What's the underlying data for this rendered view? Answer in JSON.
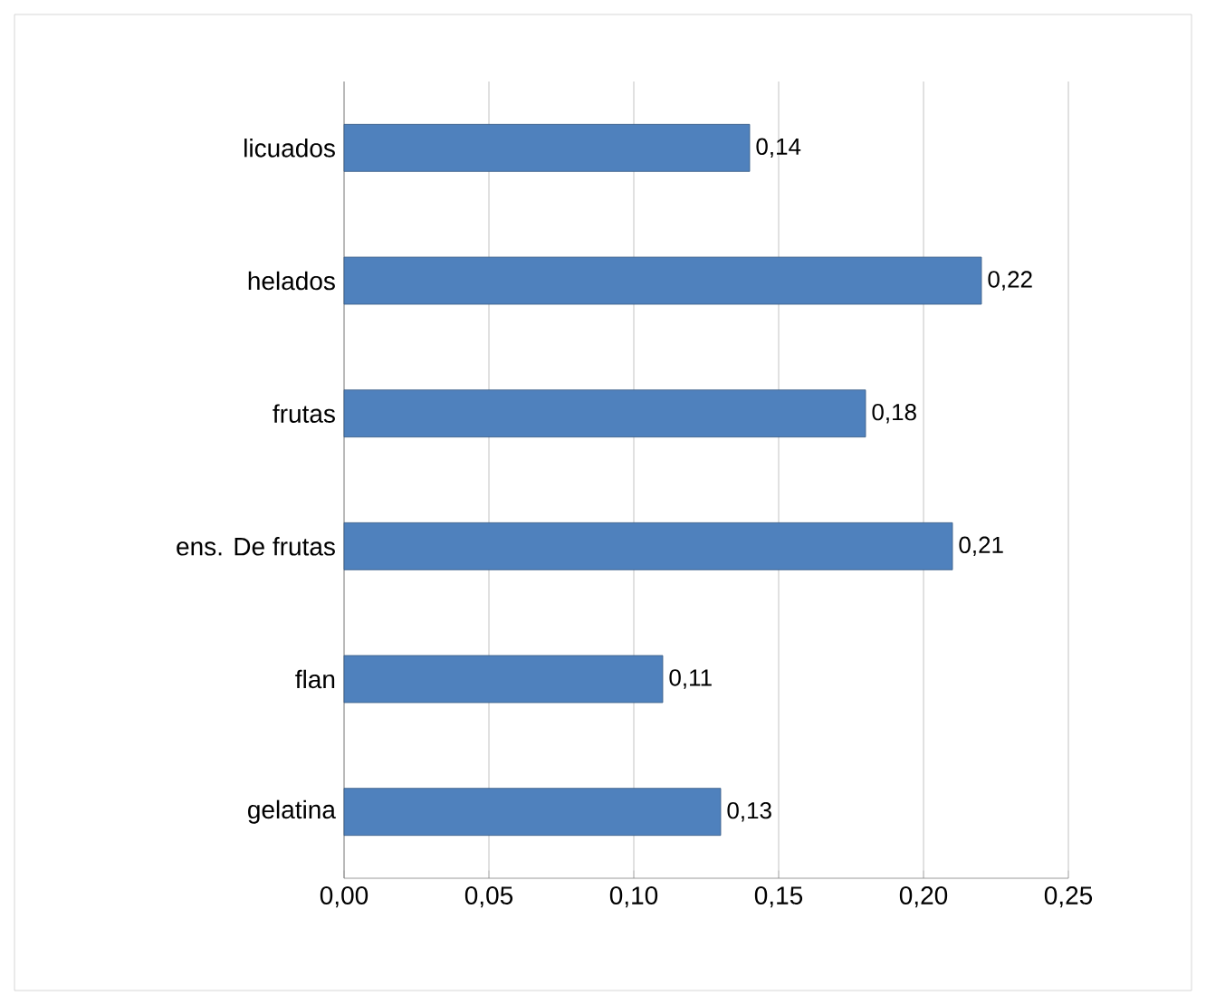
{
  "chart_data": {
    "type": "bar",
    "orientation": "horizontal",
    "categories": [
      "licuados",
      "helados",
      "frutas",
      "ens. De frutas",
      "flan",
      "gelatina"
    ],
    "values": [
      0.14,
      0.22,
      0.18,
      0.21,
      0.11,
      0.13
    ],
    "value_labels": [
      "0,14",
      "0,22",
      "0,18",
      "0,21",
      "0,11",
      "0,13"
    ],
    "color": "#4f81bd",
    "xlim": [
      0,
      0.25
    ],
    "xticks": [
      {
        "value": 0,
        "label": "0,00"
      },
      {
        "value": 0.05,
        "label": "0,05"
      },
      {
        "value": 0.1,
        "label": "0,10"
      },
      {
        "value": 0.15,
        "label": "0,15"
      },
      {
        "value": 0.2,
        "label": "0,20"
      },
      {
        "value": 0.25,
        "label": "0,25"
      }
    ],
    "grid": "x"
  }
}
